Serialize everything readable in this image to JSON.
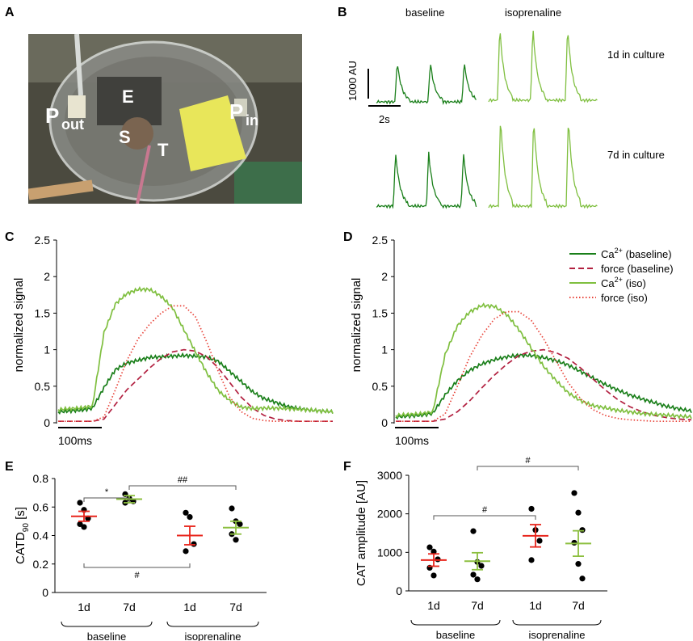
{
  "panel_labels": {
    "a": "A",
    "b": "B",
    "c": "C",
    "d": "D",
    "e": "E",
    "f": "F"
  },
  "photo": {
    "labels": {
      "p_out_main": "P",
      "p_out_sub": "out",
      "p_in_main": "P",
      "p_in_sub": "in",
      "e": "E",
      "s": "S",
      "t": "T"
    }
  },
  "panel_b": {
    "col_baseline": "baseline",
    "col_iso": "isoprenaline",
    "row1": "1d in culture",
    "row2": "7d in culture",
    "scale_y": "1000 AU",
    "scale_x": "2s",
    "colors": {
      "baseline": "#1a7f1a",
      "iso": "#7fbf3f"
    }
  },
  "chart_data": [
    {
      "id": "C",
      "type": "line",
      "ylabel": "normalized signal",
      "ylim": [
        0,
        2.5
      ],
      "yticks": [
        "0",
        "0.5",
        "1",
        "1.5",
        "2",
        "2.5"
      ],
      "scale_bar": "100ms",
      "series": [
        {
          "name": "Ca2+ (baseline)",
          "color": "#1a7f1a",
          "y": [
            0.15,
            0.15,
            0.15,
            0.17,
            0.45,
            0.7,
            0.8,
            0.85,
            0.9,
            0.92,
            0.94,
            0.95,
            0.94,
            0.92,
            0.85,
            0.7,
            0.55,
            0.4,
            0.3,
            0.25,
            0.2,
            0.18,
            0.17,
            0.17,
            0.17
          ]
        },
        {
          "name": "force (baseline)",
          "color": "#b22040",
          "dash": "dashed",
          "y": [
            0.02,
            0.02,
            0.02,
            0.02,
            0.05,
            0.25,
            0.45,
            0.6,
            0.75,
            0.88,
            0.97,
            1.0,
            0.98,
            0.9,
            0.75,
            0.55,
            0.35,
            0.2,
            0.1,
            0.05,
            0.03,
            0.02,
            0.02,
            0.02,
            0.02
          ]
        },
        {
          "name": "Ca2+ (iso)",
          "color": "#7fbf3f",
          "y": [
            0.18,
            0.18,
            0.18,
            0.2,
            1.2,
            1.6,
            1.75,
            1.82,
            1.83,
            1.75,
            1.6,
            1.3,
            1.0,
            0.7,
            0.45,
            0.3,
            0.2,
            0.17,
            0.17,
            0.17,
            0.17,
            0.17,
            0.17,
            0.17,
            0.17
          ]
        },
        {
          "name": "force (iso)",
          "color": "#e8443a",
          "dash": "dotted",
          "y": [
            0.02,
            0.02,
            0.02,
            0.02,
            0.08,
            0.45,
            0.85,
            1.15,
            1.35,
            1.5,
            1.6,
            1.6,
            1.45,
            1.1,
            0.7,
            0.35,
            0.15,
            0.06,
            0.03,
            0.02,
            0.02,
            0.02,
            0.02,
            0.02,
            0.02
          ]
        }
      ]
    },
    {
      "id": "D",
      "type": "line",
      "ylabel": "normalized signal",
      "ylim": [
        0,
        2.5
      ],
      "yticks": [
        "0",
        "0.5",
        "1",
        "1.5",
        "2",
        "2.5"
      ],
      "scale_bar": "100ms",
      "legend": [
        "Ca2+ (baseline)",
        "force (baseline)",
        "Ca2+ (iso)",
        "force (iso)"
      ],
      "series": [
        {
          "name": "Ca2+ (baseline)",
          "color": "#1a7f1a",
          "y": [
            0.08,
            0.08,
            0.08,
            0.1,
            0.35,
            0.55,
            0.7,
            0.8,
            0.87,
            0.92,
            0.95,
            0.95,
            0.92,
            0.87,
            0.8,
            0.7,
            0.6,
            0.5,
            0.42,
            0.35,
            0.3,
            0.26,
            0.22,
            0.2,
            0.18
          ]
        },
        {
          "name": "force (baseline)",
          "color": "#b22040",
          "dash": "dashed",
          "y": [
            0.02,
            0.02,
            0.02,
            0.02,
            0.05,
            0.15,
            0.3,
            0.48,
            0.65,
            0.8,
            0.92,
            0.98,
            1.0,
            0.96,
            0.88,
            0.75,
            0.6,
            0.45,
            0.32,
            0.22,
            0.15,
            0.1,
            0.07,
            0.05,
            0.04
          ]
        },
        {
          "name": "Ca2+ (iso)",
          "color": "#7fbf3f",
          "y": [
            0.1,
            0.1,
            0.1,
            0.12,
            0.9,
            1.3,
            1.5,
            1.6,
            1.6,
            1.5,
            1.3,
            1.05,
            0.8,
            0.6,
            0.42,
            0.3,
            0.22,
            0.18,
            0.14,
            0.12,
            0.1,
            0.1,
            0.1,
            0.1,
            0.1
          ]
        },
        {
          "name": "force (iso)",
          "color": "#e8443a",
          "dash": "dotted",
          "y": [
            0.02,
            0.02,
            0.02,
            0.02,
            0.12,
            0.5,
            0.9,
            1.2,
            1.42,
            1.52,
            1.52,
            1.4,
            1.15,
            0.85,
            0.55,
            0.33,
            0.18,
            0.1,
            0.06,
            0.04,
            0.03,
            0.02,
            0.02,
            0.02,
            0.02
          ]
        }
      ]
    },
    {
      "id": "E",
      "type": "scatter",
      "ylabel_main": "CATD",
      "ylabel_sub": "90",
      "ylabel_unit": " [s]",
      "ylim": [
        0,
        0.8
      ],
      "yticks": [
        "0",
        "0.2",
        "0.4",
        "0.6",
        "0.8"
      ],
      "categories": [
        "1d",
        "7d",
        "1d",
        "7d"
      ],
      "groups": [
        "baseline",
        "isoprenaline"
      ],
      "colors": [
        "#e8251c",
        "#8cbf3f",
        "#e8251c",
        "#8cbf3f"
      ],
      "means": [
        0.535,
        0.655,
        0.4,
        0.455
      ],
      "sem": [
        0.035,
        0.025,
        0.065,
        0.045
      ],
      "points": [
        [
          0.63,
          0.58,
          0.52,
          0.48,
          0.46
        ],
        [
          0.69,
          0.66,
          0.64,
          0.63
        ],
        [
          0.56,
          0.53,
          0.34,
          0.29
        ],
        [
          0.59,
          0.5,
          0.48,
          0.41,
          0.37
        ]
      ],
      "annotations": [
        {
          "label": "*",
          "from": 0,
          "to": 1
        },
        {
          "label": "##",
          "from": 1,
          "to": 3
        },
        {
          "label": "#",
          "from": 0,
          "to": 2
        }
      ]
    },
    {
      "id": "F",
      "type": "scatter",
      "ylabel": "CAT amplitude [AU]",
      "ylim": [
        0,
        3000
      ],
      "yticks": [
        "0",
        "1000",
        "2000",
        "3000"
      ],
      "categories": [
        "1d",
        "7d",
        "1d",
        "7d"
      ],
      "groups": [
        "baseline",
        "isoprenaline"
      ],
      "colors": [
        "#e8251c",
        "#8cbf3f",
        "#e8251c",
        "#8cbf3f"
      ],
      "means": [
        800,
        770,
        1430,
        1230
      ],
      "sem": [
        160,
        220,
        290,
        330
      ],
      "points": [
        [
          1130,
          1020,
          820,
          600,
          400
        ],
        [
          1550,
          750,
          650,
          420,
          300
        ],
        [
          2130,
          1580,
          1300,
          800
        ],
        [
          2540,
          2030,
          1580,
          1250,
          700,
          320
        ]
      ],
      "annotations": [
        {
          "label": "#",
          "from": 0,
          "to": 2
        },
        {
          "label": "#",
          "from": 1,
          "to": 3
        }
      ]
    }
  ]
}
